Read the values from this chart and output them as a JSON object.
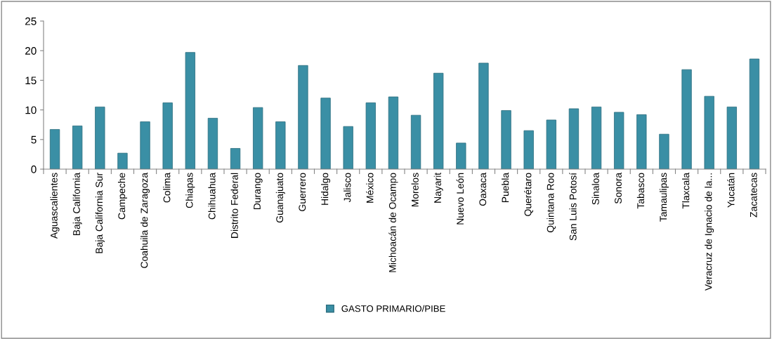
{
  "chart_data": {
    "type": "bar",
    "categories": [
      "Aguascalientes",
      "Baja California",
      "Baja California Sur",
      "Campeche",
      "Coahuila de Zaragoza",
      "Colima",
      "Chiapas",
      "Chihuahua",
      "Distrito Federal",
      "Durango",
      "Guanajuato",
      "Guerrero",
      "Hidalgo",
      "Jalisco",
      "México",
      "Michoacán de Ocampo",
      "Morelos",
      "Nayarit",
      "Nuevo León",
      "Oaxaca",
      "Puebla",
      "Querétaro",
      "Quintana Roo",
      "San Luis Potosí",
      "Sinaloa",
      "Sonora",
      "Tabasco",
      "Tamaulipas",
      "Tlaxcala",
      "Veracruz de Ignacio de la...",
      "Yucatán",
      "Zacatecas"
    ],
    "series": [
      {
        "name": "GASTO PRIMARIO/PIBE",
        "color": "#3a8fa5",
        "values": [
          6.7,
          7.3,
          10.5,
          2.7,
          8.0,
          11.2,
          19.7,
          8.6,
          3.5,
          10.4,
          8.0,
          17.5,
          12.0,
          7.2,
          11.2,
          12.2,
          9.1,
          16.2,
          4.4,
          17.9,
          9.9,
          6.5,
          8.3,
          10.2,
          10.5,
          9.6,
          9.2,
          5.9,
          16.8,
          12.3,
          10.5,
          18.6
        ]
      }
    ],
    "ylim": [
      0,
      25
    ],
    "yticks": [
      0,
      5,
      10,
      15,
      20,
      25
    ],
    "grid": false,
    "legend": "bottom"
  }
}
